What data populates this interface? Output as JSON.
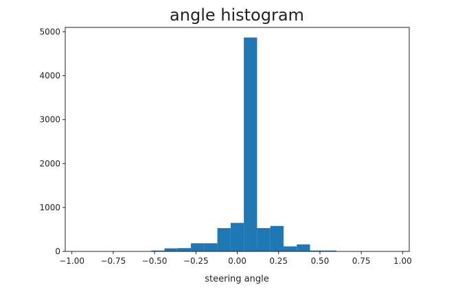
{
  "chart_data": {
    "type": "bar",
    "title": "angle histogram",
    "xlabel": "steering angle",
    "ylabel": "",
    "xlim": [
      -1.04,
      1.04
    ],
    "ylim": [
      0,
      5100
    ],
    "xticks": [
      -1.0,
      -0.75,
      -0.5,
      -0.25,
      0.0,
      0.25,
      0.5,
      0.75,
      1.0
    ],
    "xtick_labels": [
      "−1.00",
      "−0.75",
      "−0.50",
      "−0.25",
      "0.00",
      "0.25",
      "0.50",
      "0.75",
      "1.00"
    ],
    "yticks": [
      0,
      1000,
      2000,
      3000,
      4000,
      5000
    ],
    "ytick_labels": [
      "0",
      "1000",
      "2000",
      "3000",
      "4000",
      "5000"
    ],
    "grid": false,
    "bar_color": "#1f77b4",
    "bin_edges": [
      -1.0,
      -0.92,
      -0.84,
      -0.76,
      -0.68,
      -0.6,
      -0.52,
      -0.44,
      -0.36,
      -0.28,
      -0.2,
      -0.12,
      -0.04,
      0.04,
      0.12,
      0.2,
      0.28,
      0.36,
      0.44,
      0.52,
      0.6,
      0.68,
      0.76,
      0.84,
      0.92,
      1.0
    ],
    "values": [
      0,
      0,
      0,
      0,
      0,
      0,
      20,
      70,
      75,
      185,
      185,
      530,
      650,
      4870,
      530,
      580,
      115,
      160,
      20,
      20,
      0,
      0,
      0,
      0,
      0
    ]
  }
}
